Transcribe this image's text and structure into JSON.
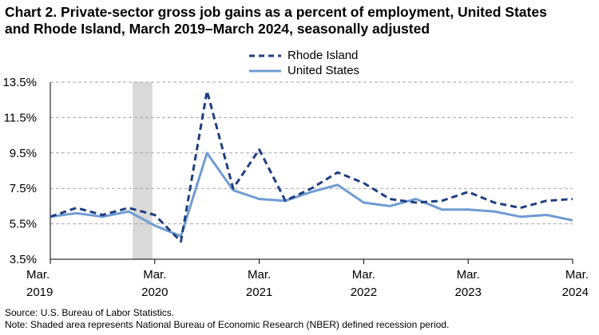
{
  "title_line1": "Chart 2. Private-sector gross job gains as a percent of employment, United States",
  "title_line2": "and Rhode Island, March 2019–March 2024, seasonally adjusted",
  "source": "Source: U.S. Bureau of Labor Statistics.",
  "note": "Note: Shaded area represents National Bureau of Economic Research (NBER) defined recession period.",
  "chart_data": {
    "type": "line",
    "title": "Chart 2. Private-sector gross job gains as a percent of employment, United States and Rhode Island, March 2019–March 2024, seasonally adjusted",
    "x": [
      "Mar 2019",
      "Jun 2019",
      "Sep 2019",
      "Dec 2019",
      "Mar 2020",
      "Jun 2020",
      "Sep 2020",
      "Dec 2020",
      "Mar 2021",
      "Jun 2021",
      "Sep 2021",
      "Dec 2021",
      "Mar 2022",
      "Jun 2022",
      "Sep 2022",
      "Dec 2022",
      "Mar 2023",
      "Jun 2023",
      "Sep 2023",
      "Dec 2023",
      "Mar 2024"
    ],
    "x_tick_labels": [
      {
        "month": "Mar.",
        "year": "2019"
      },
      {
        "month": "Mar.",
        "year": "2020"
      },
      {
        "month": "Mar.",
        "year": "2021"
      },
      {
        "month": "Mar.",
        "year": "2022"
      },
      {
        "month": "Mar.",
        "year": "2023"
      },
      {
        "month": "Mar.",
        "year": "2024"
      }
    ],
    "y_tick_labels": [
      "3.5%",
      "5.5%",
      "7.5%",
      "9.5%",
      "11.5%",
      "13.5%"
    ],
    "ylim": [
      3.5,
      13.5
    ],
    "grid": true,
    "recession_shade": {
      "start": "Dec 2019",
      "end": "Mar 2020",
      "color": "#d9d9d9"
    },
    "legend_position": "top-center",
    "series": [
      {
        "name": "Rhode Island",
        "style": "dashed",
        "color": "#1f3f7f",
        "values": [
          5.9,
          6.4,
          6.0,
          6.4,
          6.0,
          4.5,
          13.0,
          7.5,
          9.7,
          6.8,
          7.5,
          8.4,
          7.8,
          6.9,
          6.7,
          6.8,
          7.3,
          6.7,
          6.4,
          6.8,
          6.9
        ]
      },
      {
        "name": "United States",
        "style": "solid",
        "color": "#6f9bd1",
        "values": [
          5.9,
          6.1,
          5.9,
          6.2,
          5.4,
          4.8,
          9.5,
          7.4,
          6.9,
          6.8,
          7.3,
          7.7,
          6.7,
          6.5,
          6.9,
          6.3,
          6.3,
          6.2,
          5.9,
          6.0,
          5.7
        ]
      }
    ]
  }
}
